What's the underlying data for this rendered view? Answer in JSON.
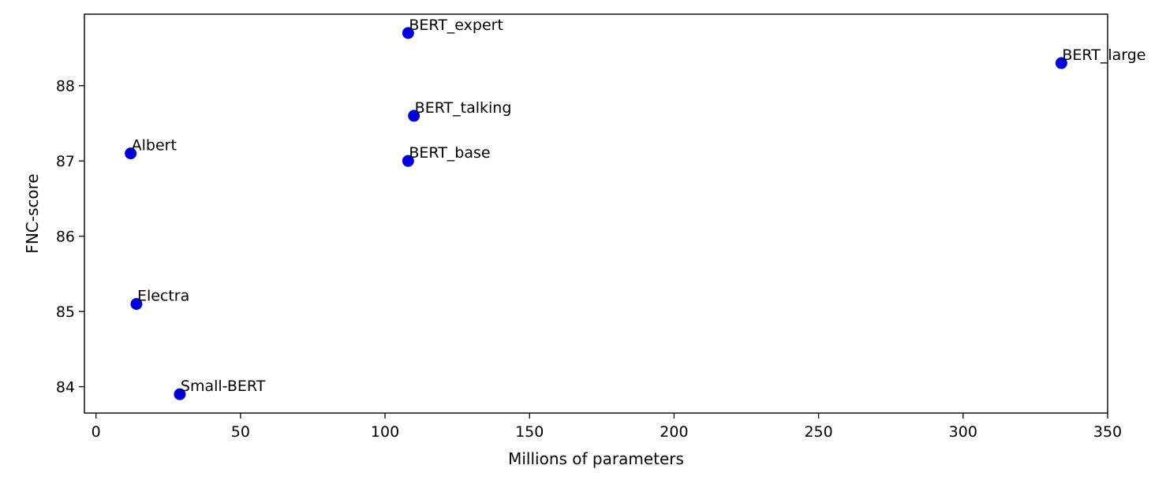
{
  "chart_data": {
    "type": "scatter",
    "title": "",
    "xlabel": "Millions of parameters",
    "ylabel": "FNC-score",
    "xlim": [
      -4,
      350
    ],
    "ylim": [
      83.65,
      88.95
    ],
    "xticks": [
      "0",
      "50",
      "100",
      "150",
      "200",
      "250",
      "300",
      "350"
    ],
    "yticks": [
      "84",
      "85",
      "86",
      "87",
      "88"
    ],
    "grid": false,
    "marker_color": "#0000dd",
    "points": [
      {
        "label": "BERT_expert",
        "x": 108,
        "y": 88.7
      },
      {
        "label": "BERT_large",
        "x": 334,
        "y": 88.3
      },
      {
        "label": "BERT_talking",
        "x": 110,
        "y": 87.6
      },
      {
        "label": "Albert",
        "x": 12,
        "y": 87.1
      },
      {
        "label": "BERT_base",
        "x": 108,
        "y": 87.0
      },
      {
        "label": "Electra",
        "x": 14,
        "y": 85.1
      },
      {
        "label": "Small-BERT",
        "x": 29,
        "y": 83.9
      }
    ]
  }
}
